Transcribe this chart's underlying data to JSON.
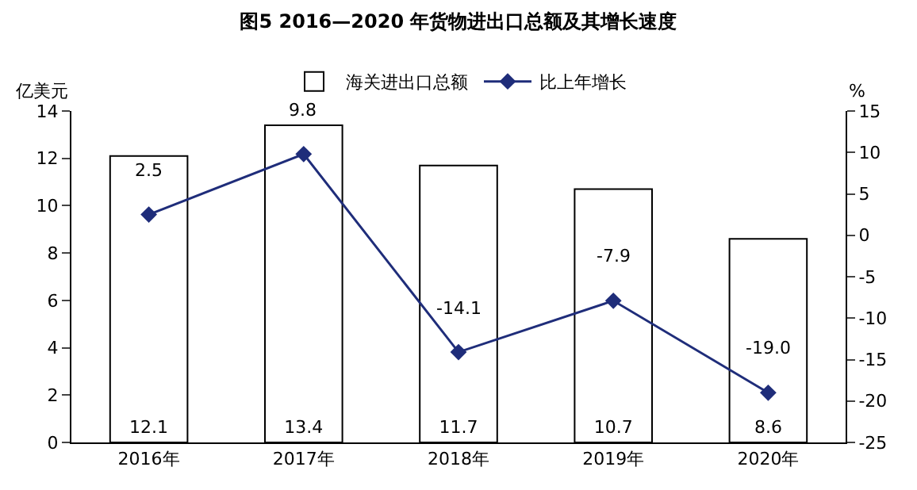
{
  "chart_data": {
    "type": "bar",
    "title": "图5 2016—2020 年货物进出口总额及其增长速度",
    "ylabel": "亿美元",
    "y2label": "%",
    "categories": [
      "2016年",
      "2017年",
      "2018年",
      "2019年",
      "2020年"
    ],
    "series": [
      {
        "name": "海关进出口总额",
        "color": "#ffffff",
        "values": [
          12.1,
          13.4,
          11.7,
          10.7,
          8.6
        ],
        "value_labels": [
          "12.1",
          "13.4",
          "11.7",
          "10.7",
          "8.6"
        ]
      },
      {
        "name": "比上年增长",
        "type": "line",
        "axis": "y2",
        "color": "#1f2d7a",
        "values": [
          2.5,
          9.8,
          -14.1,
          -7.9,
          -19.0
        ],
        "value_labels": [
          "2.5",
          "9.8",
          "-14.1",
          "-7.9",
          "-19.0"
        ]
      }
    ],
    "ylim": [
      0,
      14
    ],
    "yticks": [
      0,
      2,
      4,
      6,
      8,
      10,
      12,
      14
    ],
    "y2lim": [
      -25,
      15
    ],
    "y2ticks": [
      -25,
      -20,
      -15,
      -10,
      -5,
      0,
      5,
      10,
      15
    ],
    "grid": false,
    "legend": "top",
    "marker": "diamond",
    "line_style": "solid"
  }
}
